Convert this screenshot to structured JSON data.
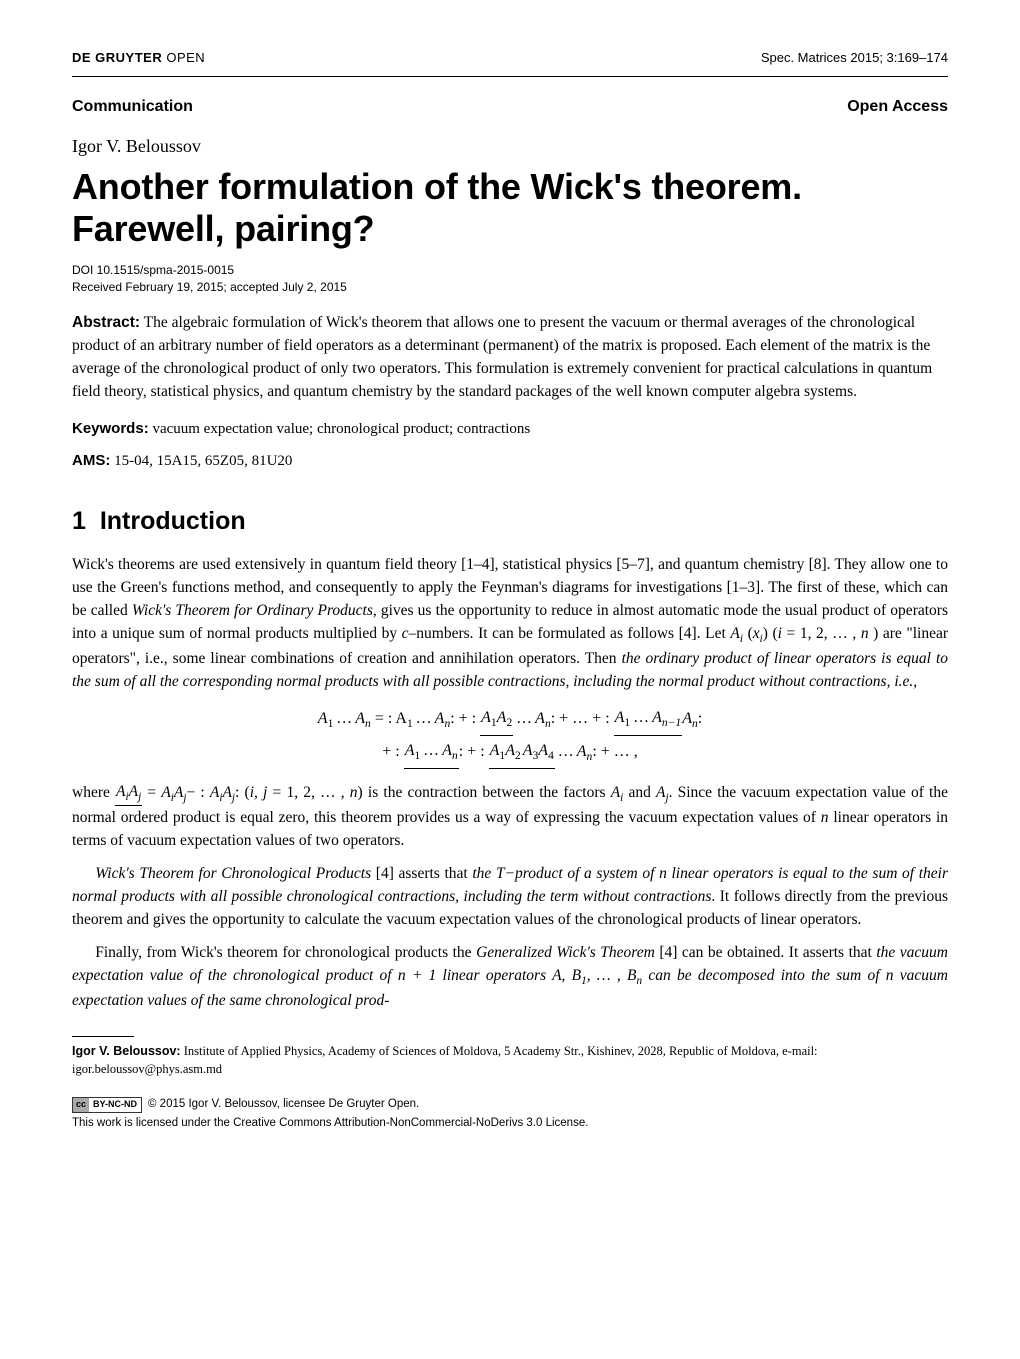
{
  "header": {
    "publisher_bold": "DE GRUYTER",
    "publisher_light": " OPEN",
    "journal_ref": "Spec. Matrices 2015; 3:169–174"
  },
  "comm_row": {
    "left": "Communication",
    "right": "Open Access"
  },
  "author": "Igor V. Beloussov",
  "title": "Another formulation of the Wick's theorem. Farewell, pairing?",
  "doi": "DOI 10.1515/spma-2015-0015",
  "received": "Received February 19, 2015; accepted July 2, 2015",
  "abstract_label": "Abstract:",
  "abstract_text": " The algebraic formulation of Wick's theorem that allows one to present the vacuum or thermal averages of the chronological product of an arbitrary number of field operators as a determinant (permanent) of the matrix is proposed. Each element of the matrix is the average of the chronological product of only two operators. This formulation is extremely convenient for practical calculations in quantum field theory, statistical physics, and quantum chemistry by the standard packages of the well known computer algebra systems.",
  "keywords_label": "Keywords:",
  "keywords_text": " vacuum expectation value; chronological product; contractions",
  "ams_label": "AMS:",
  "ams_text": " 15-04, 15A15, 65Z05, 81U20",
  "section1": {
    "number": "1",
    "title": "Introduction"
  },
  "p1_a": "Wick's theorems are used extensively in quantum field theory [1–4], statistical physics [5–7], and quantum chemistry [8]. They allow one to use the Green's functions method, and consequently to apply the Feynman's diagrams for investigations [1–3]. The first of these, which can be called ",
  "p1_b_ital": "Wick's Theorem for Ordinary Products",
  "p1_c": ", gives us the opportunity to reduce in almost automatic mode the usual product of operators into a unique sum of normal products multiplied by ",
  "p1_d_ital": "c",
  "p1_e": "–numbers. It can be formulated as follows [4]. Let ",
  "p1_f_ital": "A",
  "p1_g": " (",
  "p1_h_ital": "x",
  "p1_i": ") (",
  "p1_j_ital": "i",
  "p1_k": " = 1, 2, … , ",
  "p1_l_ital": "n",
  "p1_m": " ) are \"linear operators\", i.e., some linear combinations of creation and annihilation operators. Then ",
  "p1_n_ital": "the ordinary product of linear operators is equal to the sum of all the corresponding normal products with all possible contractions, including the normal product without contractions, i.e.,",
  "eq_line1_a": "A",
  "eq_line1_b": " … A",
  "eq_line1_c": "   =   : A",
  "eq_line1_d": " … A",
  "eq_line1_e": ": + : ",
  "eq_line1_f": "A",
  "eq_line1_g": "A",
  "eq_line1_h": " … A",
  "eq_line1_i": ": + … + : ",
  "eq_line1_j": "A",
  "eq_line1_k": " … A",
  "eq_line1_l": "A",
  "eq_line1_m": ":",
  "eq_line2_a": "+ : ",
  "eq_line2_b": "A",
  "eq_line2_c": " … A",
  "eq_line2_d": ": + : ",
  "eq_line2_e": "A",
  "eq_line2_f": "A",
  "eq_line2_g": "A",
  "eq_line2_h": "A",
  "eq_line2_i": " … A",
  "eq_line2_j": ": + … ,",
  "p2_a": "where ",
  "p2_b_ital": "A",
  "p2_c_ital": "A",
  "p2_d": " = ",
  "p2_e_ital": "A",
  "p2_f_ital": "A",
  "p2_g": "− : ",
  "p2_h_ital": "A",
  "p2_i_ital": "A",
  "p2_j": ":  (",
  "p2_k_ital": "i, j",
  "p2_l": " = 1, 2, … , ",
  "p2_m_ital": "n",
  "p2_n": ") is the contraction between the factors ",
  "p2_o_ital": "A",
  "p2_p": " and ",
  "p2_q_ital": "A",
  "p2_r": ". Since the vacuum expectation value of the normal ordered product is equal zero, this theorem provides us a way of expressing the vacuum expectation values of ",
  "p2_s_ital": "n",
  "p2_t": " linear operators in terms of vacuum expectation values of two operators.",
  "p3_a_ital": "Wick's Theorem for Chronological Products",
  "p3_b": " [4] asserts that ",
  "p3_c_ital": "the T−product of a system of n linear operators is equal to the sum of their normal products with all possible chronological contractions, including the term without contractions",
  "p3_d": ". It follows directly from the previous theorem and gives the opportunity to calculate the vacuum expectation values of the chronological products of linear operators.",
  "p4_a": "Finally, from Wick's theorem for chronological products the ",
  "p4_b_ital": "Generalized Wick's Theorem",
  "p4_c": " [4] can be obtained. It asserts that ",
  "p4_d_ital": "the vacuum expectation value of the chronological product of n + 1 linear operators A, B",
  "p4_e_ital": ", … , B",
  "p4_f_ital": " can be decomposed into the sum of n vacuum expectation values of the same chronological prod-",
  "affiliation_label": "Igor V. Beloussov:",
  "affiliation_text": " Institute of Applied Physics, Academy of Sciences of Moldova, 5 Academy Str., Kishinev, 2028, Republic of Moldova, e-mail: igor.beloussov@phys.asm.md",
  "cc_left": "cc",
  "cc_right": "BY-NC-ND",
  "license_line1": " © 2015 Igor V. Beloussov, licensee De Gruyter Open.",
  "license_line2": "This work is licensed under the Creative Commons Attribution-NonCommercial-NoDerivs 3.0 License.",
  "sub_1": "1",
  "sub_2": "2",
  "sub_3": "3",
  "sub_4": "4",
  "sub_n": "n",
  "sub_nm1": "n−1",
  "sub_i": "i",
  "sub_j": "j"
}
